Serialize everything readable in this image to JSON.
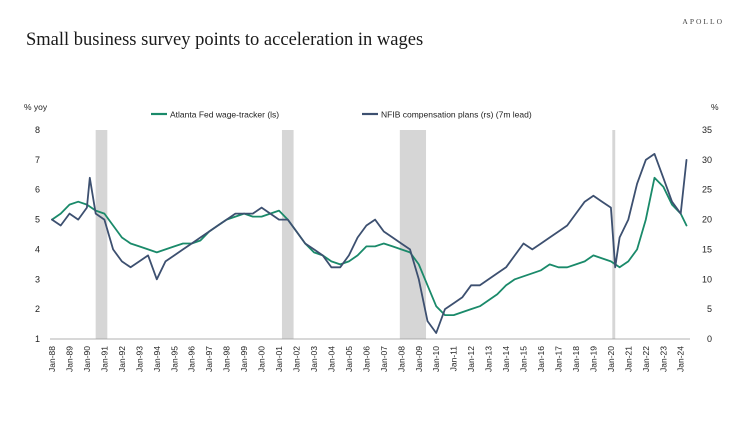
{
  "header": {
    "brand": "APOLLO",
    "title": "Small business survey points to acceleration in wages"
  },
  "chart_data": {
    "type": "line",
    "title": "Small business survey points to acceleration in wages",
    "left_unit": "% yoy",
    "right_unit": "%",
    "left_ylim": [
      1,
      8
    ],
    "left_ticks": [
      "1",
      "2",
      "3",
      "4",
      "5",
      "6",
      "7",
      "8"
    ],
    "right_ylim": [
      0,
      35
    ],
    "right_ticks": [
      "0",
      "5",
      "10",
      "15",
      "20",
      "25",
      "30",
      "35"
    ],
    "x_ticks": [
      "Jan-88",
      "Jan-89",
      "Jan-90",
      "Jan-91",
      "Jan-92",
      "Jan-93",
      "Jan-94",
      "Jan-95",
      "Jan-96",
      "Jan-97",
      "Jan-98",
      "Jan-99",
      "Jan-00",
      "Jan-01",
      "Jan-02",
      "Jan-03",
      "Jan-04",
      "Jan-05",
      "Jan-06",
      "Jan-07",
      "Jan-08",
      "Jan-09",
      "Jan-10",
      "Jan-11",
      "Jan-12",
      "Jan-13",
      "Jan-14",
      "Jan-15",
      "Jan-16",
      "Jan-17",
      "Jan-18",
      "Jan-19",
      "Jan-20",
      "Jan-21",
      "Jan-22",
      "Jan-23",
      "Jan-24"
    ],
    "x_range": [
      "Jan-88",
      "Jun-24"
    ],
    "recessions": [
      {
        "start": "Jul-90",
        "end": "Mar-91"
      },
      {
        "start": "Mar-01",
        "end": "Nov-01"
      },
      {
        "start": "Dec-07",
        "end": "Jun-09"
      },
      {
        "start": "Feb-20",
        "end": "Apr-20"
      }
    ],
    "series": [
      {
        "name": "Atlanta Fed wage-tracker (ls)",
        "axis": "left",
        "color": "#1a8a6a",
        "x": [
          "Jan-88",
          "Jul-88",
          "Jan-89",
          "Jul-89",
          "Jan-90",
          "Jul-90",
          "Jan-91",
          "Jul-91",
          "Jan-92",
          "Jul-92",
          "Jan-93",
          "Jul-93",
          "Jan-94",
          "Jul-94",
          "Jan-95",
          "Jul-95",
          "Jan-96",
          "Jul-96",
          "Jan-97",
          "Jul-97",
          "Jan-98",
          "Jul-98",
          "Jan-99",
          "Jul-99",
          "Jan-00",
          "Jul-00",
          "Jan-01",
          "Jul-01",
          "Jan-02",
          "Jul-02",
          "Jan-03",
          "Jul-03",
          "Jan-04",
          "Jul-04",
          "Jan-05",
          "Jul-05",
          "Jan-06",
          "Jul-06",
          "Jan-07",
          "Jul-07",
          "Jan-08",
          "Jul-08",
          "Jan-09",
          "Jul-09",
          "Jan-10",
          "Jul-10",
          "Jan-11",
          "Jul-11",
          "Jan-12",
          "Jul-12",
          "Jan-13",
          "Jul-13",
          "Jan-14",
          "Jul-14",
          "Jan-15",
          "Jul-15",
          "Jan-16",
          "Jul-16",
          "Jan-17",
          "Jul-17",
          "Jan-18",
          "Jul-18",
          "Jan-19",
          "Jul-19",
          "Jan-20",
          "Jul-20",
          "Jan-21",
          "Jul-21",
          "Jan-22",
          "Jul-22",
          "Jan-23",
          "Jul-23",
          "Jan-24",
          "May-24"
        ],
        "y": [
          5.0,
          5.2,
          5.5,
          5.6,
          5.5,
          5.3,
          5.2,
          4.8,
          4.4,
          4.2,
          4.1,
          4.0,
          3.9,
          4.0,
          4.1,
          4.2,
          4.2,
          4.3,
          4.6,
          4.8,
          5.0,
          5.1,
          5.2,
          5.1,
          5.1,
          5.2,
          5.3,
          5.0,
          4.6,
          4.2,
          3.9,
          3.8,
          3.6,
          3.5,
          3.6,
          3.8,
          4.1,
          4.1,
          4.2,
          4.1,
          4.0,
          3.9,
          3.5,
          2.8,
          2.1,
          1.8,
          1.8,
          1.9,
          2.0,
          2.1,
          2.3,
          2.5,
          2.8,
          3.0,
          3.1,
          3.2,
          3.3,
          3.5,
          3.4,
          3.4,
          3.5,
          3.6,
          3.8,
          3.7,
          3.6,
          3.4,
          3.6,
          4.0,
          5.0,
          6.4,
          6.1,
          5.5,
          5.2,
          4.8
        ]
      },
      {
        "name": "NFIB compensation plans (rs) (7m lead)",
        "axis": "right",
        "color": "#3d5070",
        "x": [
          "Jan-88",
          "Jul-88",
          "Jan-89",
          "Jul-89",
          "Jan-90",
          "Mar-90",
          "Jul-90",
          "Jan-91",
          "Jul-91",
          "Jan-92",
          "Jul-92",
          "Jan-93",
          "Jul-93",
          "Jan-94",
          "Jul-94",
          "Jan-95",
          "Jul-95",
          "Jan-96",
          "Jul-96",
          "Jan-97",
          "Jul-97",
          "Jan-98",
          "Jul-98",
          "Jan-99",
          "Jul-99",
          "Jan-00",
          "Jul-00",
          "Jan-01",
          "Jul-01",
          "Jan-02",
          "Jul-02",
          "Jan-03",
          "Jul-03",
          "Jan-04",
          "Jul-04",
          "Jan-05",
          "Jul-05",
          "Jan-06",
          "Jul-06",
          "Jan-07",
          "Jul-07",
          "Jan-08",
          "Jul-08",
          "Jan-09",
          "Jul-09",
          "Jan-10",
          "Jul-10",
          "Jan-11",
          "Jul-11",
          "Jan-12",
          "Jul-12",
          "Jan-13",
          "Jul-13",
          "Jan-14",
          "Jul-14",
          "Jan-15",
          "Jul-15",
          "Jan-16",
          "Jul-16",
          "Jan-17",
          "Jul-17",
          "Jan-18",
          "Jul-18",
          "Jan-19",
          "Jul-19",
          "Jan-20",
          "Apr-20",
          "Jul-20",
          "Jan-21",
          "Jul-21",
          "Jan-22",
          "Jul-22",
          "Jan-23",
          "Jul-23",
          "Jan-24",
          "May-24"
        ],
        "y": [
          20,
          19,
          21,
          20,
          22,
          27,
          21,
          20,
          15,
          13,
          12,
          13,
          14,
          10,
          13,
          14,
          15,
          16,
          17,
          18,
          19,
          20,
          21,
          21,
          21,
          22,
          21,
          20,
          20,
          18,
          16,
          15,
          14,
          12,
          12,
          14,
          17,
          19,
          20,
          18,
          17,
          16,
          15,
          10,
          3,
          1,
          5,
          6,
          7,
          9,
          9,
          10,
          11,
          12,
          14,
          16,
          15,
          16,
          17,
          18,
          19,
          21,
          23,
          24,
          23,
          22,
          12,
          17,
          20,
          26,
          30,
          31,
          27,
          23,
          21,
          30
        ]
      }
    ]
  }
}
